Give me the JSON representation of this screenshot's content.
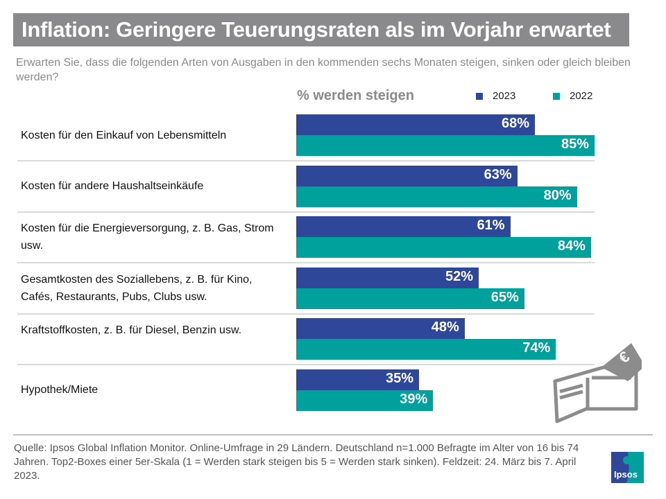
{
  "title": "Inflation: Geringere Teuerungsraten als im Vorjahr erwartet",
  "subtitle": "Erwarten Sie, dass die folgenden Arten von Ausgaben in den kommenden sechs Monaten steigen, sinken oder gleich bleiben werden?",
  "footer": "Quelle:  Ipsos Global Inflation Monitor. Online-Umfrage in 29 Ländern. Deutschland n=1.000 Befragte im Alter von 16 bis 74 Jahren. Top2-Boxes einer 5er-Skala (1 = Werden stark steigen bis 5 = Werden stark sinken). Feldzeit: 24. März bis 7. April 2023.",
  "logo_text": "Ipsos",
  "icons": [
    "wallet-euro-icon",
    "ipsos-logo"
  ],
  "chart_data": {
    "type": "bar",
    "orientation": "horizontal",
    "axis_label": "% werden steigen",
    "xlim": [
      0,
      100
    ],
    "grid": false,
    "legend_placement": "top-right",
    "categories": [
      "Kosten für den Einkauf von Lebensmitteln",
      "Kosten für andere Haushaltseinkäufe",
      "Kosten für die Energieversorgung,  z. B. Gas, Strom usw.",
      "Gesamtkosten  des Soziallebens, z. B. für Kino, Cafés,  Restaurants,  Pubs, Clubs usw.",
      "Kraftstoffkosten,  z. B. für Diesel,  Benzin usw.",
      "Hypothek/Miete"
    ],
    "series": [
      {
        "name": "2023",
        "color": "#2f4799",
        "values": [
          68,
          63,
          61,
          52,
          48,
          35
        ]
      },
      {
        "name": "2022",
        "color": "#00a09c",
        "values": [
          85,
          80,
          84,
          65,
          74,
          39
        ]
      }
    ]
  }
}
